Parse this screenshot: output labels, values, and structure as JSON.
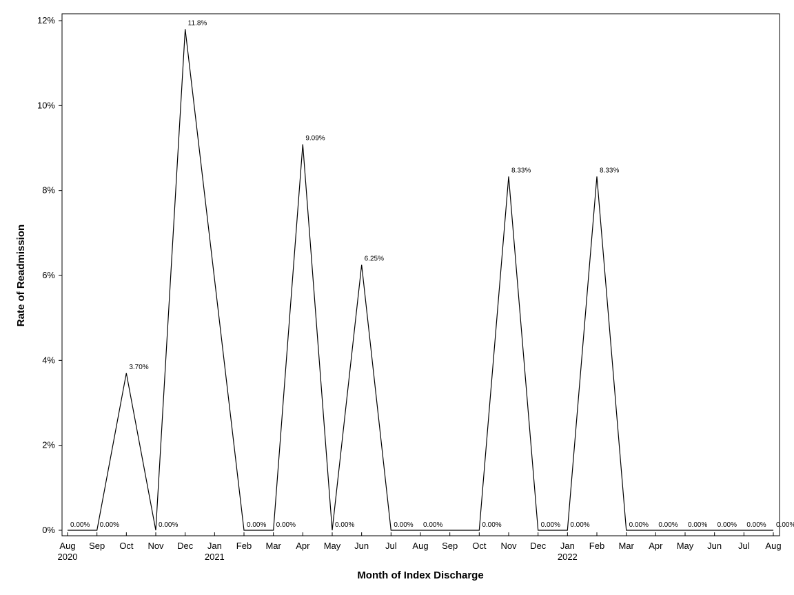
{
  "chart_data": {
    "type": "line",
    "xlabel": "Month of Index Discharge",
    "ylabel": "Rate of Readmission",
    "ylim": [
      0,
      12
    ],
    "yticks": [
      0,
      2,
      4,
      6,
      8,
      10,
      12
    ],
    "ytick_labels": [
      "0%",
      "2%",
      "4%",
      "6%",
      "8%",
      "10%",
      "12%"
    ],
    "grid": false,
    "x_ticks": [
      {
        "label": "Aug",
        "year": "2020"
      },
      {
        "label": "Sep",
        "year": ""
      },
      {
        "label": "Oct",
        "year": ""
      },
      {
        "label": "Nov",
        "year": ""
      },
      {
        "label": "Dec",
        "year": ""
      },
      {
        "label": "Jan",
        "year": "2021"
      },
      {
        "label": "Feb",
        "year": ""
      },
      {
        "label": "Mar",
        "year": ""
      },
      {
        "label": "Apr",
        "year": ""
      },
      {
        "label": "May",
        "year": ""
      },
      {
        "label": "Jun",
        "year": ""
      },
      {
        "label": "Jul",
        "year": ""
      },
      {
        "label": "Aug",
        "year": ""
      },
      {
        "label": "Sep",
        "year": ""
      },
      {
        "label": "Oct",
        "year": ""
      },
      {
        "label": "Nov",
        "year": ""
      },
      {
        "label": "Dec",
        "year": ""
      },
      {
        "label": "Jan",
        "year": "2022"
      },
      {
        "label": "Feb",
        "year": ""
      },
      {
        "label": "Mar",
        "year": ""
      },
      {
        "label": "Apr",
        "year": ""
      },
      {
        "label": "May",
        "year": ""
      },
      {
        "label": "Jun",
        "year": ""
      },
      {
        "label": "Jul",
        "year": ""
      },
      {
        "label": "Aug",
        "year": ""
      }
    ],
    "points": [
      {
        "x": "2020-08",
        "y": 0,
        "label": "0.00%"
      },
      {
        "x": "2020-09",
        "y": 0,
        "label": "0.00%"
      },
      {
        "x": "2020-10",
        "y": 3.7,
        "label": "3.70%"
      },
      {
        "x": "2020-11",
        "y": 0,
        "label": "0.00%"
      },
      {
        "x": "2020-12",
        "y": 11.8,
        "label": "11.8%"
      },
      {
        "x": "2021-02",
        "y": 0,
        "label": "0.00%"
      },
      {
        "x": "2021-03",
        "y": 0,
        "label": "0.00%"
      },
      {
        "x": "2021-04",
        "y": 9.09,
        "label": "9.09%"
      },
      {
        "x": "2021-05",
        "y": 0,
        "label": "0.00%"
      },
      {
        "x": "2021-06",
        "y": 6.25,
        "label": "6.25%"
      },
      {
        "x": "2021-07",
        "y": 0,
        "label": "0.00%"
      },
      {
        "x": "2021-08",
        "y": 0,
        "label": "0.00%"
      },
      {
        "x": "2021-10",
        "y": 0,
        "label": "0.00%"
      },
      {
        "x": "2021-11",
        "y": 8.33,
        "label": "8.33%"
      },
      {
        "x": "2021-12",
        "y": 0,
        "label": "0.00%"
      },
      {
        "x": "2022-01",
        "y": 0,
        "label": "0.00%"
      },
      {
        "x": "2022-02",
        "y": 8.33,
        "label": "8.33%"
      },
      {
        "x": "2022-03",
        "y": 0,
        "label": "0.00%"
      },
      {
        "x": "2022-04",
        "y": 0,
        "label": "0.00%"
      },
      {
        "x": "2022-05",
        "y": 0,
        "label": "0.00%"
      },
      {
        "x": "2022-06",
        "y": 0,
        "label": "0.00%"
      },
      {
        "x": "2022-07",
        "y": 0,
        "label": "0.00%"
      },
      {
        "x": "2022-08",
        "y": 0,
        "label": "0.00%"
      }
    ],
    "line_color": "#000000"
  }
}
